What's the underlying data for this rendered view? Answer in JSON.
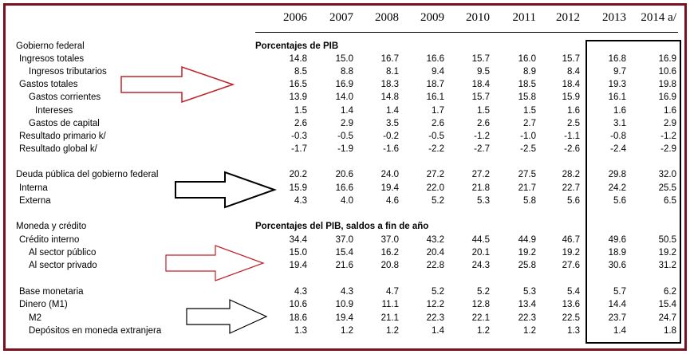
{
  "years": [
    "2006",
    "2007",
    "2008",
    "2009",
    "2010",
    "2011",
    "2012",
    "2013",
    "2014 a/"
  ],
  "sections": [
    {
      "title": "Gobierno federal",
      "subtitle": "Porcentajes de PIB",
      "rows": [
        {
          "label": "Ingresos totales",
          "indent": 1,
          "values": [
            "14.8",
            "15.0",
            "16.7",
            "16.6",
            "15.7",
            "16.0",
            "15.7",
            "16.8",
            "16.9"
          ]
        },
        {
          "label": "Ingresos tributarios",
          "indent": 2,
          "values": [
            "8.5",
            "8.8",
            "8.1",
            "9.4",
            "9.5",
            "8.9",
            "8.4",
            "9.7",
            "10.6"
          ]
        },
        {
          "label": "Gastos totales",
          "indent": 1,
          "values": [
            "16.5",
            "16.9",
            "18.3",
            "18.7",
            "18.4",
            "18.5",
            "18.4",
            "19.3",
            "19.8"
          ]
        },
        {
          "label": "Gastos corrientes",
          "indent": 2,
          "values": [
            "13.9",
            "14.0",
            "14.8",
            "16.1",
            "15.7",
            "15.8",
            "15.9",
            "16.1",
            "16.9"
          ]
        },
        {
          "label": "Intereses",
          "indent": 3,
          "values": [
            "1.5",
            "1.4",
            "1.4",
            "1.7",
            "1.5",
            "1.5",
            "1.6",
            "1.6",
            "1.6"
          ]
        },
        {
          "label": "Gastos de capital",
          "indent": 2,
          "values": [
            "2.6",
            "2.9",
            "3.5",
            "2.6",
            "2.6",
            "2.7",
            "2.5",
            "3.1",
            "2.9"
          ]
        },
        {
          "label": "Resultado primario k/",
          "indent": 1,
          "values": [
            "-0.3",
            "-0.5",
            "-0.2",
            "-0.5",
            "-1.2",
            "-1.0",
            "-1.1",
            "-0.8",
            "-1.2"
          ]
        },
        {
          "label": "Resultado global k/",
          "indent": 1,
          "values": [
            "-1.7",
            "-1.9",
            "-1.6",
            "-2.2",
            "-2.7",
            "-2.5",
            "-2.6",
            "-2.4",
            "-2.9"
          ]
        }
      ]
    },
    {
      "title": "Deuda pública del gobierno federal",
      "subtitle": "",
      "values": [
        "20.2",
        "20.6",
        "24.0",
        "27.2",
        "27.2",
        "27.5",
        "28.2",
        "29.8",
        "32.0"
      ],
      "rows": [
        {
          "label": "Interna",
          "indent": 1,
          "values": [
            "15.9",
            "16.6",
            "19.4",
            "22.0",
            "21.8",
            "21.7",
            "22.7",
            "24.2",
            "25.5"
          ]
        },
        {
          "label": "Externa",
          "indent": 1,
          "values": [
            "4.3",
            "4.0",
            "4.6",
            "5.2",
            "5.3",
            "5.8",
            "5.6",
            "5.6",
            "6.5"
          ]
        }
      ]
    },
    {
      "title": "Moneda y crédito",
      "subtitle": "Porcentajes del PIB, saldos a fin de año",
      "rows": [
        {
          "label": "Crédito interno",
          "indent": 1,
          "values": [
            "34.4",
            "37.0",
            "37.0",
            "43.2",
            "44.5",
            "44.9",
            "46.7",
            "49.6",
            "50.5"
          ]
        },
        {
          "label": "Al sector público",
          "indent": 2,
          "values": [
            "15.0",
            "15.4",
            "16.2",
            "20.4",
            "20.1",
            "19.2",
            "19.2",
            "18.9",
            "19.2"
          ]
        },
        {
          "label": "Al sector privado",
          "indent": 2,
          "values": [
            "19.4",
            "21.6",
            "20.8",
            "22.8",
            "24.3",
            "25.8",
            "27.6",
            "30.6",
            "31.2"
          ]
        }
      ]
    },
    {
      "title": "",
      "subtitle": "",
      "rows": [
        {
          "label": "Base monetaria",
          "indent": 1,
          "values": [
            "4.3",
            "4.3",
            "4.7",
            "5.2",
            "5.2",
            "5.3",
            "5.4",
            "5.7",
            "6.2"
          ]
        },
        {
          "label": "Dinero (M1)",
          "indent": 1,
          "values": [
            "10.6",
            "10.9",
            "11.1",
            "12.2",
            "12.8",
            "13.4",
            "13.6",
            "14.4",
            "15.4"
          ]
        },
        {
          "label": "M2",
          "indent": 2,
          "values": [
            "18.6",
            "19.4",
            "21.1",
            "22.3",
            "22.1",
            "22.3",
            "22.5",
            "23.7",
            "24.7"
          ]
        },
        {
          "label": "Depósitos en moneda extranjera",
          "indent": 2,
          "values": [
            "1.3",
            "1.2",
            "1.2",
            "1.4",
            "1.2",
            "1.2",
            "1.3",
            "1.4",
            "1.8"
          ]
        }
      ]
    }
  ],
  "colors": {
    "frame": "#7a1020",
    "arrow_red": "#c0202a",
    "arrow_black": "#000000"
  }
}
